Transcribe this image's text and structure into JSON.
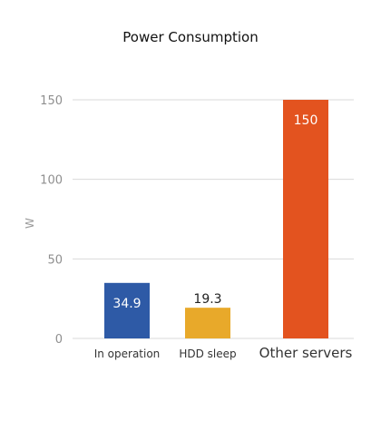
{
  "chart_data": {
    "type": "bar",
    "title": "Power Consumption",
    "xlabel": "",
    "ylabel": "W",
    "categories": [
      "In operation",
      "HDD sleep",
      "Other servers"
    ],
    "values": [
      34.9,
      19.3,
      150
    ],
    "value_labels": [
      "34.9",
      "19.3",
      "150"
    ],
    "bar_colors": [
      "#2e5aa6",
      "#e8a92a",
      "#e3531f"
    ],
    "ylim": [
      0,
      150
    ],
    "yticks": [
      0,
      50,
      100,
      150
    ],
    "grid": "y"
  }
}
